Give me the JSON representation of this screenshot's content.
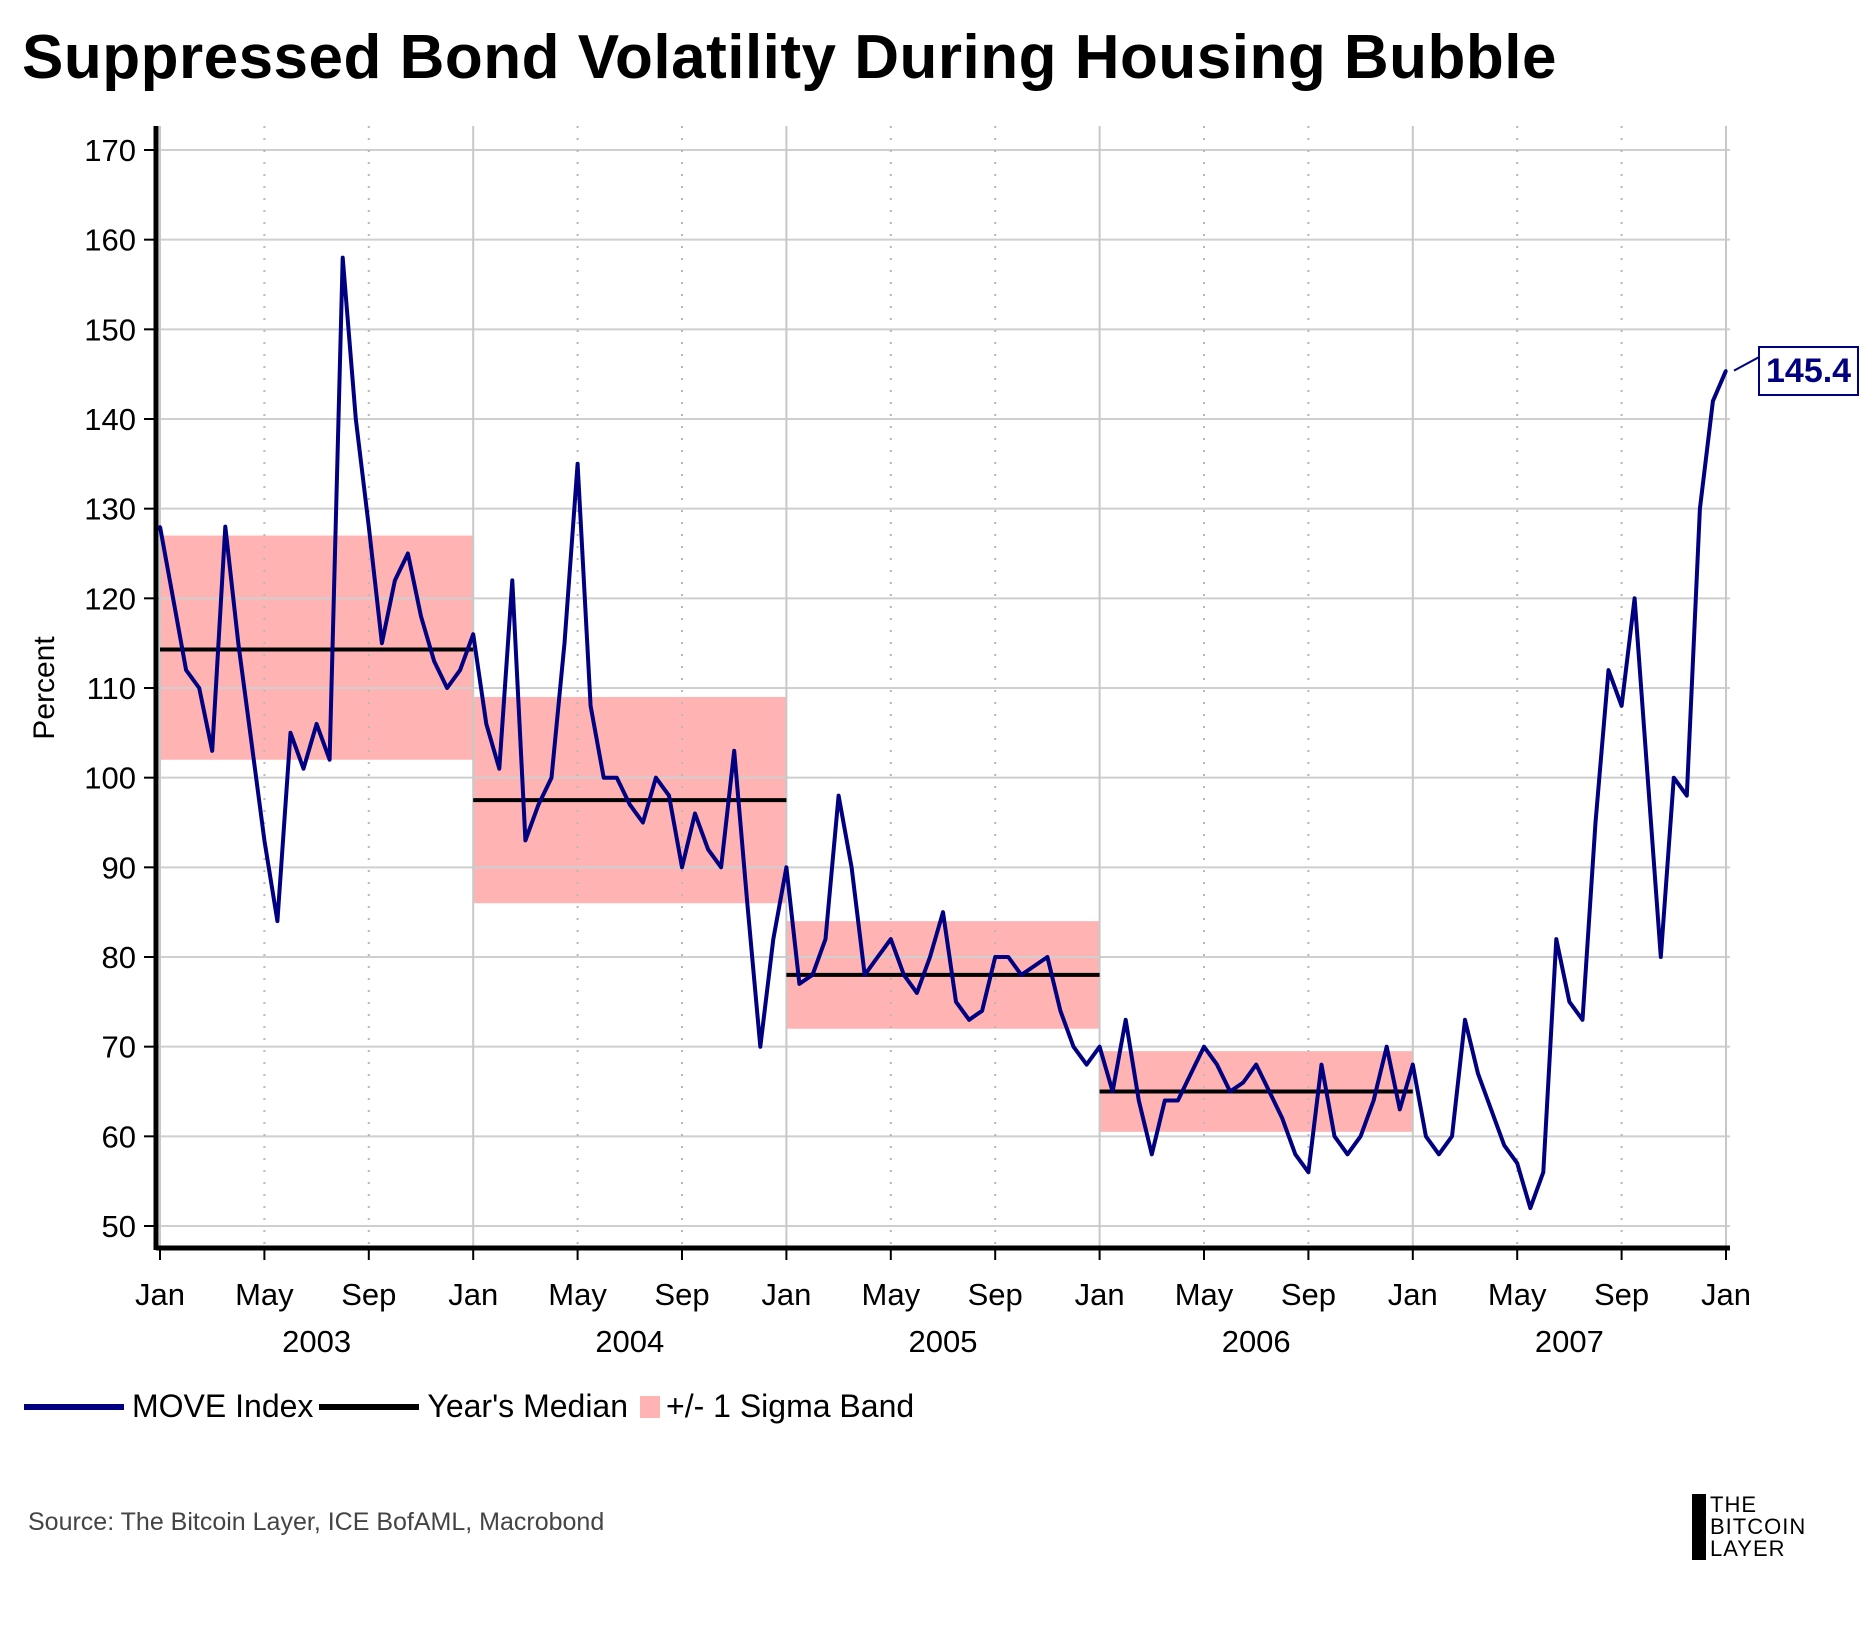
{
  "chart_data": {
    "type": "line",
    "title": "Suppressed Bond Volatility During Housing Bubble",
    "ylabel": "Percent",
    "xlabel": "",
    "ylim": [
      50,
      170
    ],
    "yticks": [
      "50",
      "60",
      "70",
      "80",
      "90",
      "100",
      "110",
      "120",
      "130",
      "140",
      "150",
      "160",
      "170"
    ],
    "xtick_labels": [
      "Jan",
      "May",
      "Sep",
      "Jan",
      "May",
      "Sep",
      "Jan",
      "May",
      "Sep",
      "Jan",
      "May",
      "Sep",
      "Jan",
      "May",
      "Sep",
      "Jan"
    ],
    "year_labels": [
      "2003",
      "2004",
      "2005",
      "2006",
      "2007"
    ],
    "grid": true,
    "legend_position": "bottom-left",
    "legend": [
      "MOVE Index",
      "Year's Median",
      "+/- 1 Sigma Band"
    ],
    "series_start": "2003-01",
    "series_step": "half-month",
    "series": [
      {
        "name": "MOVE Index",
        "color": "#000080",
        "values": [
          128,
          120,
          112,
          110,
          103,
          128,
          115,
          104,
          93,
          84,
          105,
          101,
          106,
          102,
          158,
          140,
          128,
          115,
          122,
          125,
          118,
          113,
          110,
          112,
          116,
          106,
          101,
          122,
          93,
          97,
          100,
          115,
          135,
          108,
          100,
          100,
          97,
          95,
          100,
          98,
          90,
          96,
          92,
          90,
          103,
          86,
          70,
          82,
          90,
          77,
          78,
          82,
          98,
          90,
          78,
          80,
          82,
          78,
          76,
          80,
          85,
          75,
          73,
          74,
          80,
          80,
          78,
          79,
          80,
          74,
          70,
          68,
          70,
          65,
          73,
          64,
          58,
          64,
          64,
          67,
          70,
          68,
          65,
          66,
          68,
          65,
          62,
          58,
          56,
          68,
          60,
          58,
          60,
          64,
          70,
          63,
          68,
          60,
          58,
          60,
          73,
          67,
          63,
          59,
          57,
          52,
          56,
          82,
          75,
          73,
          95,
          112,
          108,
          120,
          100,
          80,
          100,
          98,
          130,
          142,
          145.4
        ]
      }
    ],
    "medians": [
      {
        "year": "2003",
        "value": 114.3
      },
      {
        "year": "2004",
        "value": 97.5
      },
      {
        "year": "2005",
        "value": 78
      },
      {
        "year": "2006",
        "value": 65
      }
    ],
    "sigma_bands": [
      {
        "year": "2003",
        "low": 102,
        "high": 127
      },
      {
        "year": "2004",
        "low": 86,
        "high": 109
      },
      {
        "year": "2005",
        "low": 72,
        "high": 84
      },
      {
        "year": "2006",
        "low": 60.5,
        "high": 69.5
      }
    ],
    "last_value_label": "145.4",
    "colors": {
      "line": "#000080",
      "median": "#000000",
      "band": "#ffb3b3"
    }
  },
  "source": "Source: The Bitcoin Layer, ICE BofAML, Macrobond",
  "logo": {
    "line1": "THE",
    "line2": "BITCOIN",
    "line3": "LAYER"
  }
}
